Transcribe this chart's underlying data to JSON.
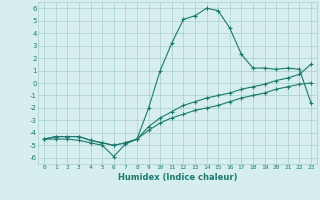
{
  "xlabel": "Humidex (Indice chaleur)",
  "ylabel": "",
  "background_color": "#d6eeee",
  "grid_color": "#aacccc",
  "line_color": "#1a7a6e",
  "ylim": [
    -6.5,
    6.5
  ],
  "xlim": [
    -0.5,
    23.5
  ],
  "x": [
    0,
    1,
    2,
    3,
    4,
    5,
    6,
    7,
    8,
    9,
    10,
    11,
    12,
    13,
    14,
    15,
    16,
    17,
    18,
    19,
    20,
    21,
    22,
    23
  ],
  "line1": [
    -4.5,
    -4.5,
    -4.5,
    -4.6,
    -4.8,
    -5.0,
    -5.9,
    -4.9,
    -4.5,
    -2.0,
    1.0,
    3.2,
    5.1,
    5.4,
    6.0,
    5.8,
    4.4,
    2.3,
    1.2,
    1.2,
    1.1,
    1.2,
    1.1,
    -1.6
  ],
  "line2": [
    -4.5,
    -4.3,
    -4.3,
    -4.3,
    -4.6,
    -4.8,
    -5.0,
    -4.8,
    -4.5,
    -3.8,
    -3.2,
    -2.8,
    -2.5,
    -2.2,
    -2.0,
    -1.8,
    -1.5,
    -1.2,
    -1.0,
    -0.8,
    -0.5,
    -0.3,
    -0.1,
    0.0
  ],
  "line3": [
    -4.5,
    -4.3,
    -4.3,
    -4.3,
    -4.6,
    -4.8,
    -5.0,
    -4.8,
    -4.5,
    -3.5,
    -2.8,
    -2.3,
    -1.8,
    -1.5,
    -1.2,
    -1.0,
    -0.8,
    -0.5,
    -0.3,
    -0.1,
    0.2,
    0.4,
    0.7,
    1.5
  ],
  "yticks": [
    -6,
    -5,
    -4,
    -3,
    -2,
    -1,
    0,
    1,
    2,
    3,
    4,
    5,
    6
  ]
}
